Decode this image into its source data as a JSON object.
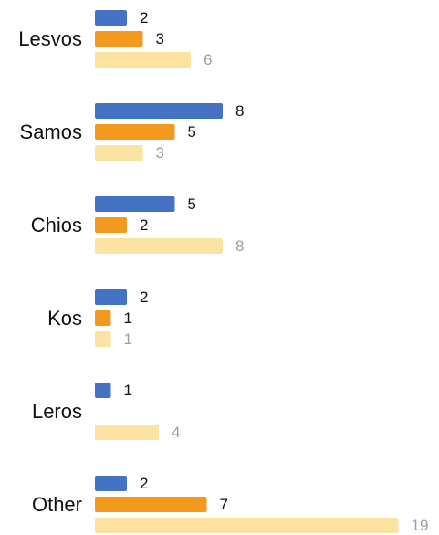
{
  "chart_data": {
    "type": "bar",
    "orientation": "horizontal",
    "categories": [
      "Lesvos",
      "Samos",
      "Chios",
      "Kos",
      "Leros",
      "Other"
    ],
    "series": [
      {
        "values": [
          2,
          8,
          5,
          2,
          1,
          2
        ],
        "color": "#4472C4",
        "label_color": "#111111"
      },
      {
        "values": [
          3,
          5,
          2,
          1,
          0,
          7
        ],
        "color": "#F39A1E",
        "label_color": "#111111"
      },
      {
        "values": [
          6,
          3,
          8,
          1,
          4,
          19
        ],
        "color": "#FDE3A1",
        "label_color": "#9E9E9E"
      }
    ],
    "xlim": [
      0,
      19
    ],
    "grid": false,
    "legend": "none",
    "title": "",
    "xlabel": "",
    "ylabel": ""
  }
}
